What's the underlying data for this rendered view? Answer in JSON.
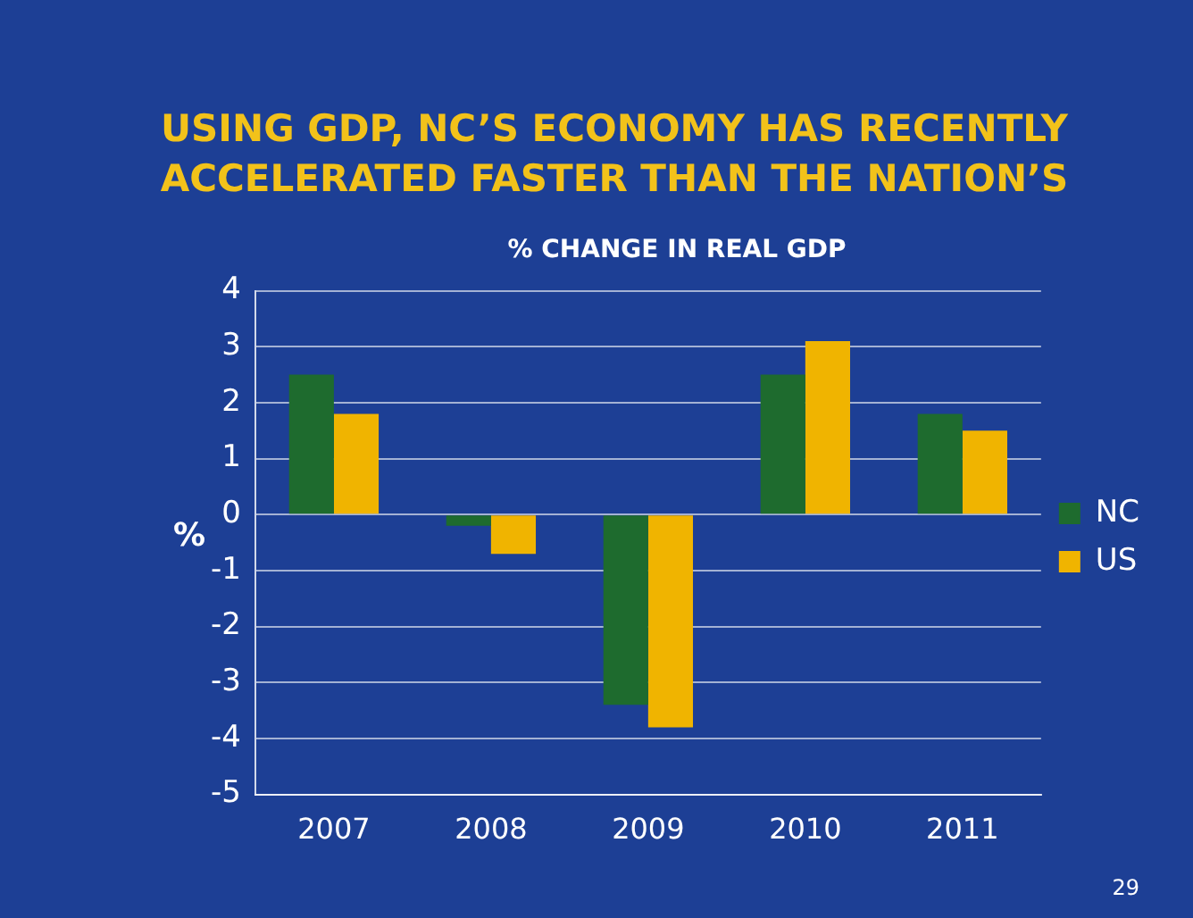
{
  "chart_data": {
    "type": "bar",
    "title": "USING GDP, NC’S ECONOMY HAS RECENTLY ACCELERATED FASTER THAN THE NATION’S",
    "subtitle": "% CHANGE IN REAL GDP",
    "ylabel": "%",
    "categories": [
      "2007",
      "2008",
      "2009",
      "2010",
      "2011"
    ],
    "series": [
      {
        "name": "NC",
        "color": "#1e6b2e",
        "values": [
          2.5,
          -0.2,
          -3.4,
          2.5,
          1.8
        ]
      },
      {
        "name": "US",
        "color": "#f0b400",
        "values": [
          1.8,
          -0.7,
          -3.8,
          3.1,
          1.5
        ]
      }
    ],
    "ylim": [
      -5,
      4
    ],
    "yticks": [
      -5,
      -4,
      -3,
      -2,
      -1,
      0,
      1,
      2,
      3,
      4
    ],
    "grid": "y",
    "legend": "right",
    "annotations": [
      "29"
    ]
  }
}
